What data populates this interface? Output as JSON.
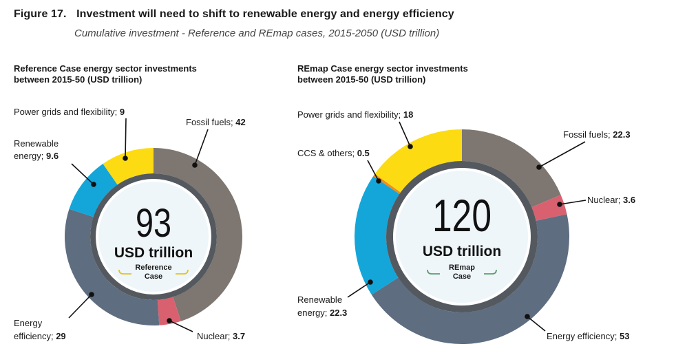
{
  "figure": {
    "number": "Figure 17.",
    "title": "Investment will need to shift to renewable energy and energy efficiency",
    "subtitle": "Cumulative investment - Reference and REmap cases, 2015-2050 (USD trillion)"
  },
  "colors": {
    "fossil": "#7d7671",
    "nuclear": "#d9616f",
    "efficiency": "#5e6d80",
    "renewable": "#14a6d9",
    "grids": "#fcdb12",
    "ccs": "#f28c1c",
    "inner_ring": "#54595f",
    "center_fill": "#eef6fa",
    "ref_accent": "#e8c21a",
    "remap_accent": "#5f9c6e"
  },
  "chart_data": [
    {
      "type": "pie",
      "title": "Reference Case energy sector investments between 2015-50 (USD trillion)",
      "center_value": "93",
      "center_unit": "USD trillion",
      "center_case": [
        "Reference",
        "Case"
      ],
      "slices": [
        {
          "name": "Fossil fuels",
          "value": 42,
          "display": "42",
          "color": "#7d7671"
        },
        {
          "name": "Nuclear",
          "value": 3.7,
          "display": "3.7",
          "color": "#d9616f"
        },
        {
          "name": "Energy efficiency",
          "value": 29,
          "display": "29",
          "color": "#5e6d80"
        },
        {
          "name": "Renewable energy",
          "value": 9.6,
          "display": "9.6",
          "color": "#14a6d9"
        },
        {
          "name": "Power grids and flexibility",
          "value": 9,
          "display": "9",
          "color": "#fcdb12"
        }
      ]
    },
    {
      "type": "pie",
      "title": "REmap Case energy sector investments between 2015-50 (USD trillion)",
      "center_value": "120",
      "center_unit": "USD trillion",
      "center_case": [
        "REmap",
        "Case"
      ],
      "slices": [
        {
          "name": "Fossil fuels",
          "value": 22.3,
          "display": "22.3",
          "color": "#7d7671"
        },
        {
          "name": "Nuclear",
          "value": 3.6,
          "display": "3.6",
          "color": "#d9616f"
        },
        {
          "name": "Energy efficiency",
          "value": 53,
          "display": "53",
          "color": "#5e6d80"
        },
        {
          "name": "Renewable energy",
          "value": 22.3,
          "display": "22.3",
          "color": "#14a6d9"
        },
        {
          "name": "CCS & others",
          "value": 0.5,
          "display": "0.5",
          "color": "#f28c1c"
        },
        {
          "name": "Power grids and flexibility",
          "value": 18,
          "display": "18",
          "color": "#fcdb12"
        }
      ]
    }
  ],
  "labels": {
    "ref": {
      "grids": "Power grids and flexibility; ",
      "fossil": "Fossil fuels; ",
      "renewable_1": "Renewable",
      "renewable_2": "energy; ",
      "efficiency_1": "Energy",
      "efficiency_2": "efficiency; ",
      "nuclear": "Nuclear; "
    },
    "remap": {
      "grids": "Power grids and flexibility; ",
      "fossil": "Fossil fuels; ",
      "ccs": "CCS & others; ",
      "nuclear": "Nuclear; ",
      "renewable_1": "Renewable",
      "renewable_2": "energy; ",
      "efficiency": "Energy efficiency; "
    }
  },
  "chart_titles": {
    "ref_line1": "Reference Case energy sector investments",
    "ref_line2": "between 2015-50 (USD trillion)",
    "remap_line1": "REmap Case energy sector investments",
    "remap_line2": "between 2015-50 (USD trillion)"
  }
}
